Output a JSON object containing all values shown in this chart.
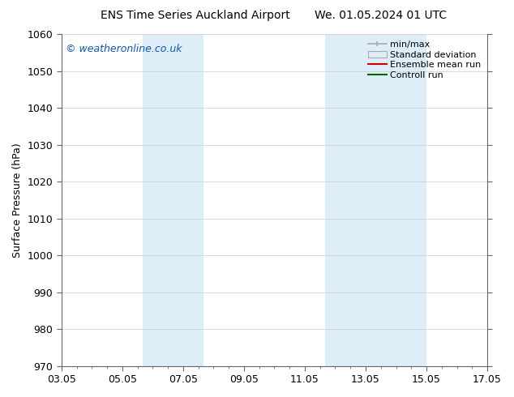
{
  "title_left": "ENS Time Series Auckland Airport",
  "title_right": "We. 01.05.2024 01 UTC",
  "ylabel": "Surface Pressure (hPa)",
  "xlim": [
    0,
    14
  ],
  "ylim": [
    970,
    1060
  ],
  "yticks": [
    970,
    980,
    990,
    1000,
    1010,
    1020,
    1030,
    1040,
    1050,
    1060
  ],
  "xtick_labels": [
    "03.05",
    "05.05",
    "07.05",
    "09.05",
    "11.05",
    "13.05",
    "15.05",
    "17.05"
  ],
  "xtick_positions": [
    0,
    2,
    4,
    6,
    8,
    10,
    12,
    14
  ],
  "shaded_bands": [
    {
      "x_start": 2.67,
      "x_end": 4.67
    },
    {
      "x_start": 8.67,
      "x_end": 12.0
    }
  ],
  "shaded_color": "#ddeef8",
  "watermark": "© weatheronline.co.uk",
  "watermark_color": "#1155aa",
  "legend_labels": [
    "min/max",
    "Standard deviation",
    "Ensemble mean run",
    "Controll run"
  ],
  "legend_line_colors": [
    "#aaaaaa",
    "#cccccc",
    "#cc0000",
    "#006600"
  ],
  "background_color": "#ffffff",
  "grid_color": "#cccccc",
  "title_fontsize": 10,
  "ylabel_fontsize": 9,
  "tick_fontsize": 9,
  "watermark_fontsize": 9,
  "legend_fontsize": 8
}
